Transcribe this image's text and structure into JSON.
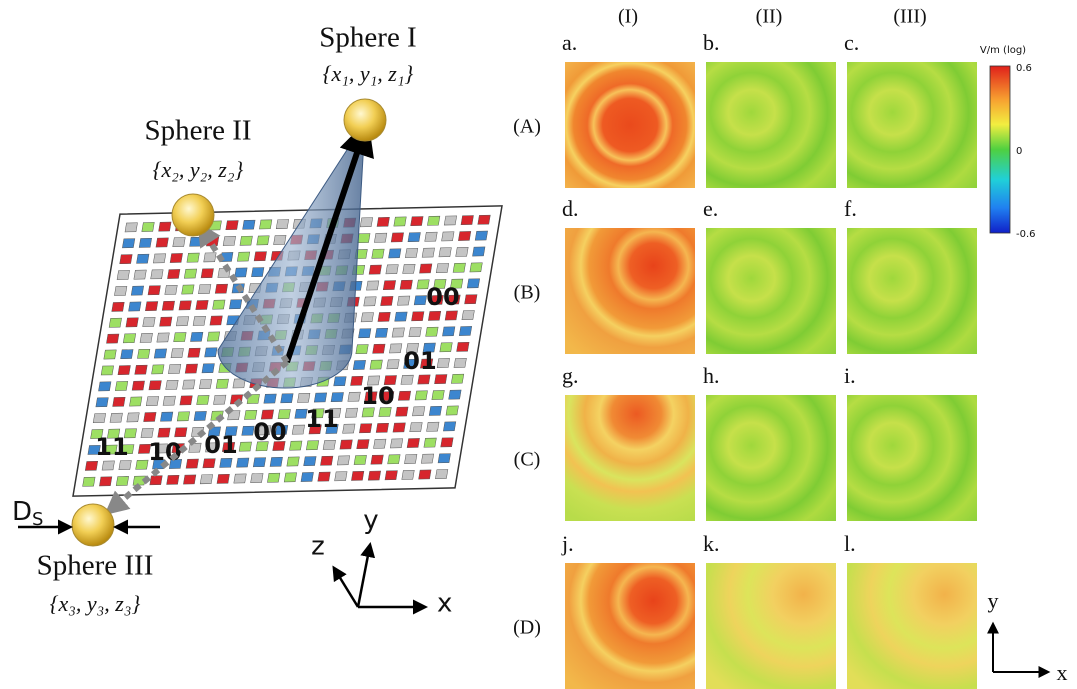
{
  "left_figure": {
    "spheres": [
      {
        "name": "Sphere I",
        "coords": "{x₁, y₁, z₁}"
      },
      {
        "name": "Sphere II",
        "coords": "{x₂, y₂, z₂}"
      },
      {
        "name": "Sphere III",
        "coords": "{x₃, y₃, z₃}"
      }
    ],
    "diameter_label": {
      "main": "D",
      "sub": "S"
    },
    "code_labels": [
      "00",
      "01",
      "10",
      "11",
      "00",
      "01",
      "10",
      "11"
    ],
    "axes": {
      "z": "z",
      "y": "y",
      "x": "x"
    }
  },
  "right_figure": {
    "columns": [
      "(I)",
      "(II)",
      "(III)"
    ],
    "rows": [
      "(A)",
      "(B)",
      "(C)",
      "(D)"
    ],
    "panels": [
      "a.",
      "b.",
      "c.",
      "d.",
      "e.",
      "f.",
      "g.",
      "h.",
      "i.",
      "j.",
      "k.",
      "l."
    ],
    "colorbar": {
      "unit": "V/m (log)",
      "ticks": [
        0.6,
        0,
        -0.6
      ]
    },
    "axes": {
      "y": "y",
      "x": "x"
    }
  }
}
